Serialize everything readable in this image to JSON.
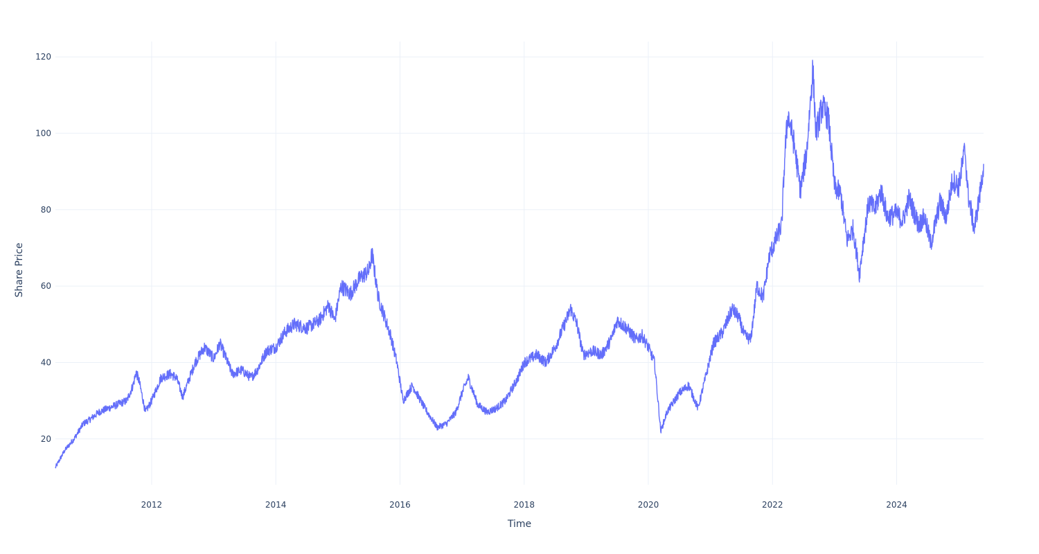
{
  "chart_data": {
    "type": "line",
    "title": "",
    "xlabel": "Time",
    "ylabel": "Share Price",
    "xlim": [
      2010.45,
      2025.4
    ],
    "ylim": [
      8,
      124
    ],
    "grid": true,
    "legend": "none",
    "x_ticks": [
      2012,
      2014,
      2016,
      2018,
      2020,
      2022,
      2024
    ],
    "x_tick_labels": [
      "2012",
      "2014",
      "2016",
      "2018",
      "2020",
      "2022",
      "2024"
    ],
    "y_ticks": [
      20,
      40,
      60,
      80,
      100,
      120
    ],
    "y_tick_labels": [
      "20",
      "40",
      "60",
      "80",
      "100",
      "120"
    ],
    "series": [
      {
        "color": "#636efa",
        "x": [
          2010.45,
          2010.6,
          2010.75,
          2010.9,
          2011.0,
          2011.15,
          2011.3,
          2011.45,
          2011.6,
          2011.7,
          2011.75,
          2011.8,
          2011.9,
          2012.0,
          2012.15,
          2012.3,
          2012.4,
          2012.5,
          2012.7,
          2012.85,
          2013.0,
          2013.1,
          2013.3,
          2013.45,
          2013.6,
          2013.7,
          2013.85,
          2014.0,
          2014.15,
          2014.3,
          2014.5,
          2014.7,
          2014.85,
          2014.95,
          2015.05,
          2015.2,
          2015.35,
          2015.5,
          2015.55,
          2015.65,
          2015.75,
          2015.85,
          2015.95,
          2016.05,
          2016.2,
          2016.4,
          2016.6,
          2016.75,
          2016.9,
          2017.0,
          2017.1,
          2017.25,
          2017.4,
          2017.55,
          2017.7,
          2017.9,
          2018.0,
          2018.2,
          2018.35,
          2018.5,
          2018.65,
          2018.75,
          2018.85,
          2018.95,
          2019.1,
          2019.25,
          2019.4,
          2019.5,
          2019.65,
          2019.8,
          2019.9,
          2020.0,
          2020.1,
          2020.2,
          2020.3,
          2020.5,
          2020.65,
          2020.8,
          2020.95,
          2021.05,
          2021.2,
          2021.35,
          2021.45,
          2021.55,
          2021.65,
          2021.75,
          2021.85,
          2021.95,
          2022.05,
          2022.15,
          2022.2,
          2022.25,
          2022.35,
          2022.45,
          2022.55,
          2022.65,
          2022.7,
          2022.8,
          2022.9,
          2023.0,
          2023.1,
          2023.2,
          2023.3,
          2023.4,
          2023.45,
          2023.55,
          2023.65,
          2023.75,
          2023.85,
          2024.0,
          2024.1,
          2024.2,
          2024.35,
          2024.45,
          2024.55,
          2024.7,
          2024.8,
          2024.9,
          2025.0,
          2025.1,
          2025.15,
          2025.25,
          2025.35,
          2025.4
        ],
        "y": [
          12.5,
          17,
          20,
          24,
          25,
          27,
          28,
          29,
          30,
          34,
          37.5,
          35,
          27,
          30,
          36,
          37,
          36,
          31,
          40,
          44,
          41,
          45,
          37,
          38,
          36,
          38,
          43,
          44,
          48,
          50,
          49,
          51,
          55,
          51,
          60,
          58,
          62,
          64,
          68.5,
          57,
          52,
          47,
          40,
          30,
          34,
          28,
          23,
          24,
          27,
          32,
          36,
          29,
          27,
          28,
          30,
          36,
          40,
          42,
          40,
          44,
          50,
          54,
          50,
          42,
          43,
          42,
          46,
          51,
          49,
          46,
          47,
          44,
          40,
          22,
          27,
          32,
          34,
          28,
          38,
          45,
          48,
          54,
          52,
          47,
          46,
          60,
          57,
          68,
          72,
          76,
          95,
          105,
          97,
          85,
          95,
          117,
          100,
          107,
          104,
          86,
          84,
          72,
          75,
          63,
          70,
          82,
          80,
          85,
          78,
          79,
          77,
          83,
          76,
          78,
          71,
          82,
          78,
          88,
          86,
          96,
          84,
          75,
          85,
          92
        ]
      }
    ]
  }
}
